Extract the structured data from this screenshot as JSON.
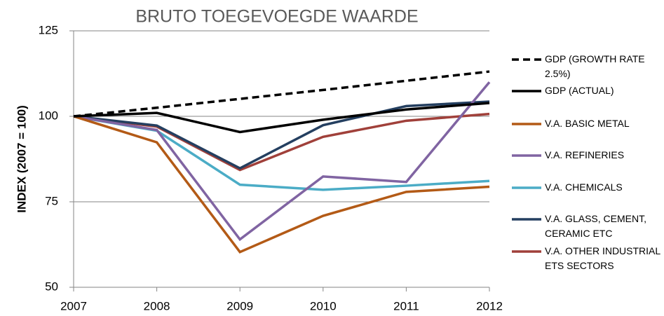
{
  "chart_data": {
    "type": "line",
    "title": "BRUTO TOEGEVOEGDE WAARDE",
    "y_label": "INDEX (2007 = 100)",
    "x": [
      2007,
      2008,
      2009,
      2010,
      2011,
      2012
    ],
    "xlim": [
      2007,
      2012
    ],
    "xticks": [
      2007,
      2008,
      2009,
      2010,
      2011,
      2012
    ],
    "ylim": [
      50,
      125
    ],
    "yticks": [
      50,
      75,
      100,
      125
    ],
    "grid": true,
    "legend": "right",
    "series": [
      {
        "name": "GDP (GROWTH RATE 2.5%)",
        "color": "#000000",
        "dashed": true,
        "values": [
          100,
          102.5,
          105.1,
          107.7,
          110.4,
          113.1
        ]
      },
      {
        "name": "GDP (ACTUAL)",
        "color": "#000000",
        "values": [
          100,
          101,
          95.4,
          99,
          102,
          103.9
        ]
      },
      {
        "name": "V.A. BASIC METAL",
        "color": "#b35a16",
        "values": [
          100,
          92.4,
          60.3,
          70.9,
          77.9,
          79.4
        ]
      },
      {
        "name": "V.A. REFINERIES",
        "color": "#8064a2",
        "values": [
          100,
          96,
          64,
          82.4,
          80.8,
          110
        ]
      },
      {
        "name": "V.A. CHEMICALS",
        "color": "#4bacc6",
        "values": [
          100,
          95.8,
          80,
          78.5,
          79.7,
          81.1
        ]
      },
      {
        "name": "V.A. GLASS, CEMENT, CERAMIC ETC",
        "color": "#243f60",
        "values": [
          100,
          97.3,
          84.8,
          97.4,
          103,
          104.3
        ]
      },
      {
        "name": "V.A. OTHER INDUSTRIAL ETS SECTORS",
        "color": "#a0403a",
        "values": [
          100,
          97,
          84.3,
          94,
          98.7,
          100.7
        ]
      }
    ]
  }
}
